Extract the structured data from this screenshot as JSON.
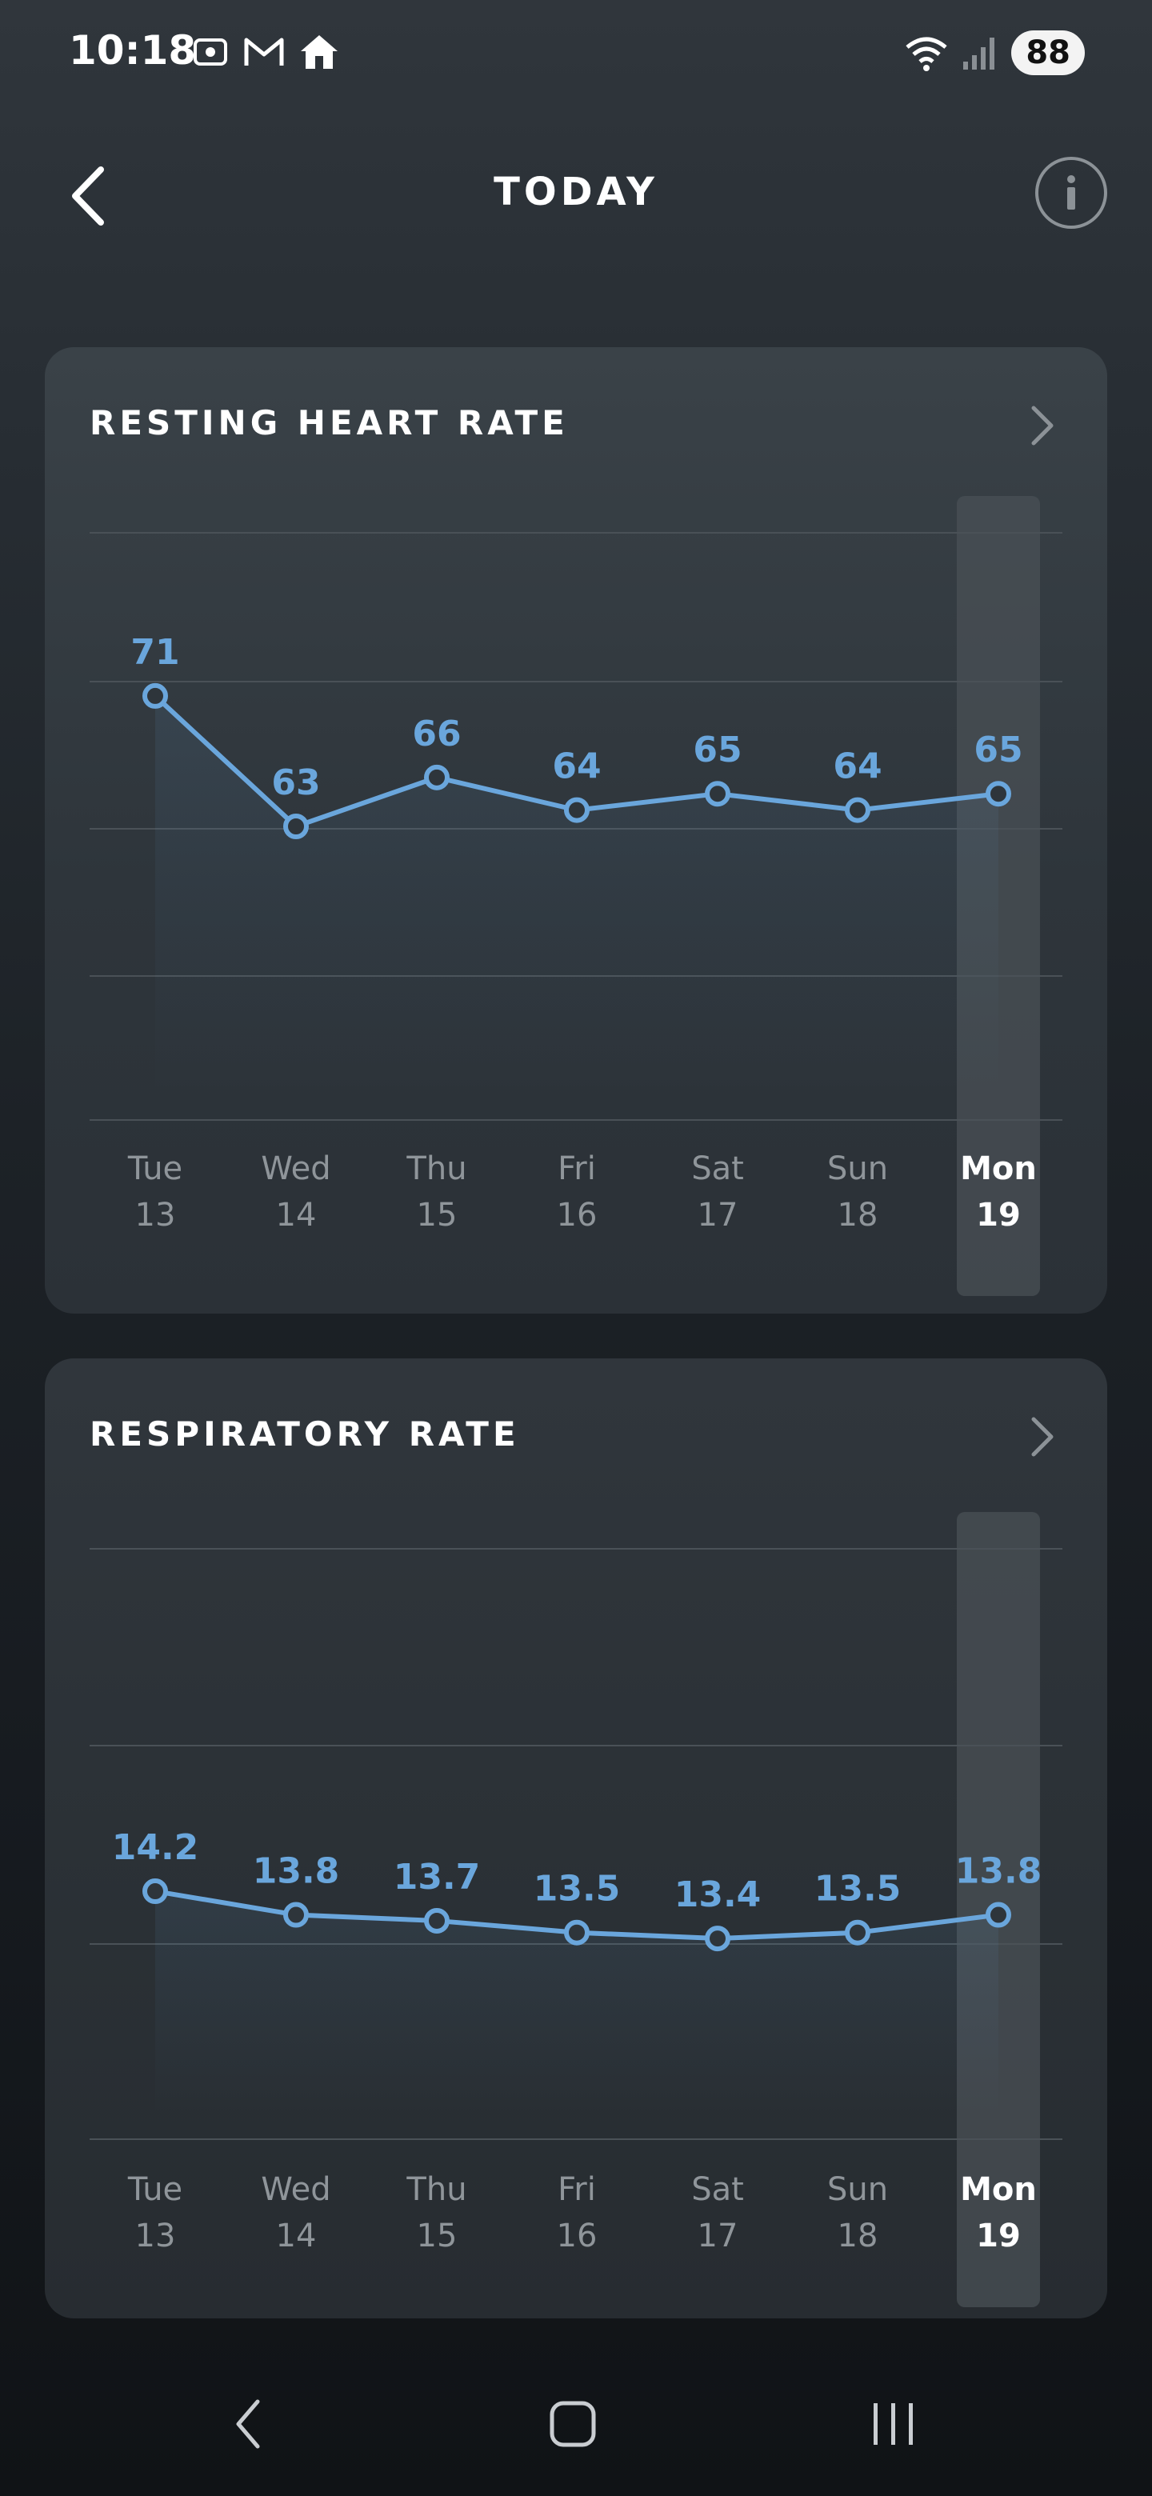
{
  "status_bar": {
    "time": "10:18",
    "battery": "88",
    "left_icons": [
      "screenshot-icon",
      "gmail-icon",
      "home-icon"
    ],
    "right_icons": [
      "wifi-icon",
      "signal-icon"
    ]
  },
  "header": {
    "title": "TODAY",
    "back_icon": "chevron-left-icon",
    "info_icon": "info-icon"
  },
  "colors": {
    "accent": "#6aa6dc",
    "selected_column": "#4a5056"
  },
  "cards": [
    {
      "title": "RESTING HEART RATE",
      "chart_data": {
        "type": "line",
        "x": [
          "Tue 13",
          "Wed 14",
          "Thu 15",
          "Fri 16",
          "Sat 17",
          "Sun 18",
          "Mon 19"
        ],
        "day_names": [
          "Tue",
          "Wed",
          "Thu",
          "Fri",
          "Sat",
          "Sun",
          "Mon"
        ],
        "day_numbers": [
          "13",
          "14",
          "15",
          "16",
          "17",
          "18",
          "19"
        ],
        "values": [
          71,
          63,
          66,
          64,
          65,
          64,
          65
        ],
        "labels": [
          "71",
          "63",
          "66",
          "64",
          "65",
          "64",
          "65"
        ],
        "ylim": [
          45,
          81
        ],
        "selected_index": 6,
        "grid": true,
        "title": "RESTING HEART RATE"
      }
    },
    {
      "title": "RESPIRATORY RATE",
      "chart_data": {
        "type": "line",
        "x": [
          "Tue 13",
          "Wed 14",
          "Thu 15",
          "Fri 16",
          "Sat 17",
          "Sun 18",
          "Mon 19"
        ],
        "day_names": [
          "Tue",
          "Wed",
          "Thu",
          "Fri",
          "Sat",
          "Sun",
          "Mon"
        ],
        "day_numbers": [
          "13",
          "14",
          "15",
          "16",
          "17",
          "18",
          "19"
        ],
        "values": [
          14.2,
          13.8,
          13.7,
          13.5,
          13.4,
          13.5,
          13.8
        ],
        "labels": [
          "14.2",
          "13.8",
          "13.7",
          "13.5",
          "13.4",
          "13.5",
          "13.8"
        ],
        "ylim": [
          10,
          20
        ],
        "selected_index": 6,
        "grid": true,
        "title": "RESPIRATORY RATE"
      }
    }
  ],
  "nav_bar": {
    "items": [
      "back-nav-icon",
      "home-nav-icon",
      "recents-nav-icon"
    ]
  }
}
